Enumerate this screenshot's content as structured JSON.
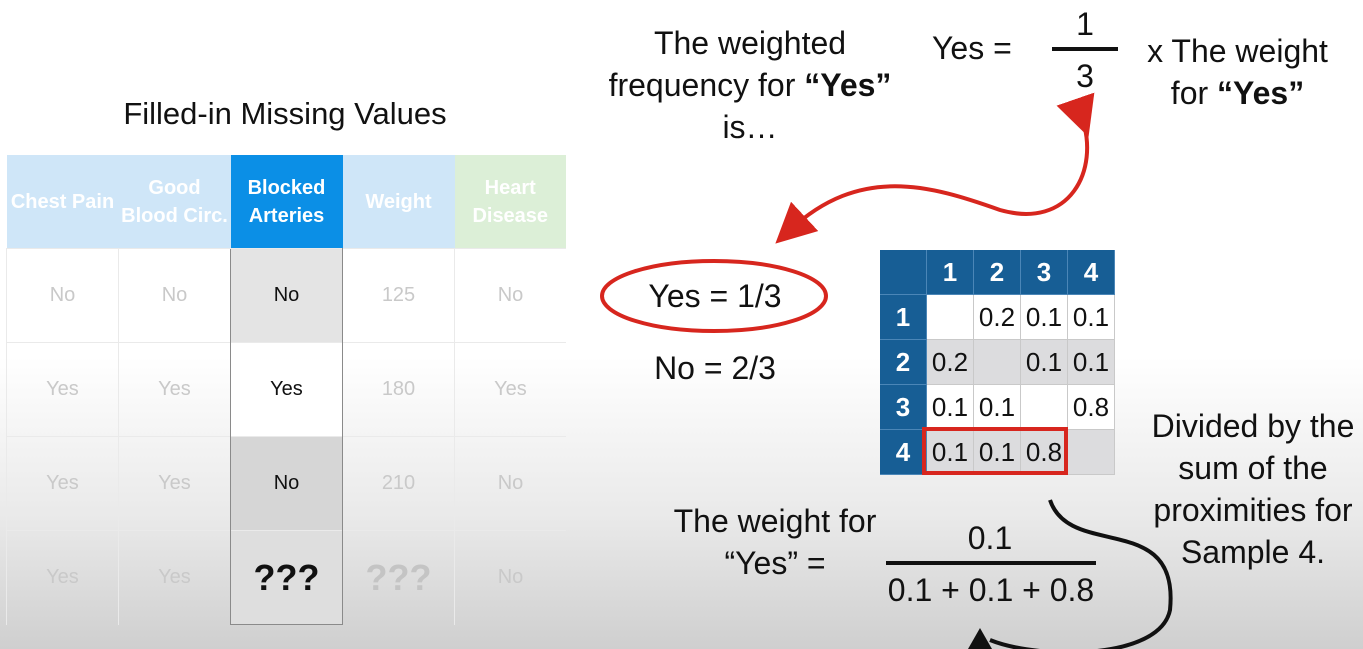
{
  "table": {
    "title": "Filled-in Missing Values",
    "headers": [
      "Chest Pain",
      "Good Blood Circ.",
      "Blocked Arteries",
      "Weight",
      "Heart Disease"
    ],
    "rows": [
      [
        "No",
        "No",
        "No",
        "125",
        "No"
      ],
      [
        "Yes",
        "Yes",
        "Yes",
        "180",
        "Yes"
      ],
      [
        "Yes",
        "Yes",
        "No",
        "210",
        "No"
      ],
      [
        "Yes",
        "Yes",
        "???",
        "???",
        "No"
      ]
    ]
  },
  "explanation": {
    "intro_line1": "The weighted",
    "intro_line2_a": "frequency for ",
    "intro_line2_b": "“Yes”",
    "intro_line3": "is…",
    "formula_label": "Yes =",
    "fraction_num": "1",
    "fraction_den": "3",
    "times_weight_a": "x The weight",
    "times_weight_b_a": "for ",
    "times_weight_b_b": "“Yes”",
    "yes_value": "Yes = 1/3",
    "no_value": "No = 2/3",
    "divided_line1": "Divided by the",
    "divided_line2": "sum of the",
    "divided_line3": "proximities for",
    "divided_line4": "Sample 4.",
    "weight_label_line1": "The weight for",
    "weight_label_line2": "“Yes” =",
    "weight_num": "0.1",
    "weight_den": "0.1 + 0.1 + 0.8"
  },
  "proximity": {
    "headers": [
      "1",
      "2",
      "3",
      "4"
    ],
    "rows": [
      {
        "label": "1",
        "cells": [
          "",
          "0.2",
          "0.1",
          "0.1"
        ]
      },
      {
        "label": "2",
        "cells": [
          "0.2",
          "",
          "0.1",
          "0.1"
        ]
      },
      {
        "label": "3",
        "cells": [
          "0.1",
          "0.1",
          "",
          "0.8"
        ]
      },
      {
        "label": "4",
        "cells": [
          "0.1",
          "0.1",
          "0.8",
          ""
        ]
      }
    ]
  },
  "colors": {
    "highlight_blue": "#0b8fe6",
    "matrix_header": "#175e95",
    "annotation_red": "#d7261e"
  }
}
